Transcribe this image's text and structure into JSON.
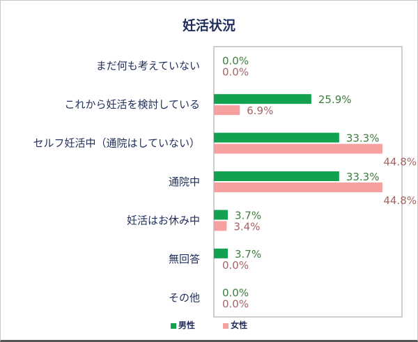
{
  "chart_data": {
    "type": "bar",
    "orientation": "horizontal",
    "title": "妊活状況",
    "categories": [
      "まだ何も考えていない",
      "これから妊活を検討している",
      "セルフ妊活中（通院はしていない）",
      "通院中",
      "妊活はお休み中",
      "無回答",
      "その他"
    ],
    "series": [
      {
        "name": "男性",
        "color": "#12a14e",
        "label_color": "#3d7d3d",
        "values": [
          0.0,
          25.9,
          33.3,
          33.3,
          3.7,
          3.7,
          0.0
        ]
      },
      {
        "name": "女性",
        "color": "#f7a0a0",
        "label_color": "#a56464",
        "values": [
          0.0,
          6.9,
          44.8,
          44.8,
          3.4,
          0.0,
          0.0
        ]
      }
    ],
    "xlim": [
      0,
      50
    ],
    "unit": "%",
    "grid": false,
    "legend_position": "bottom"
  }
}
